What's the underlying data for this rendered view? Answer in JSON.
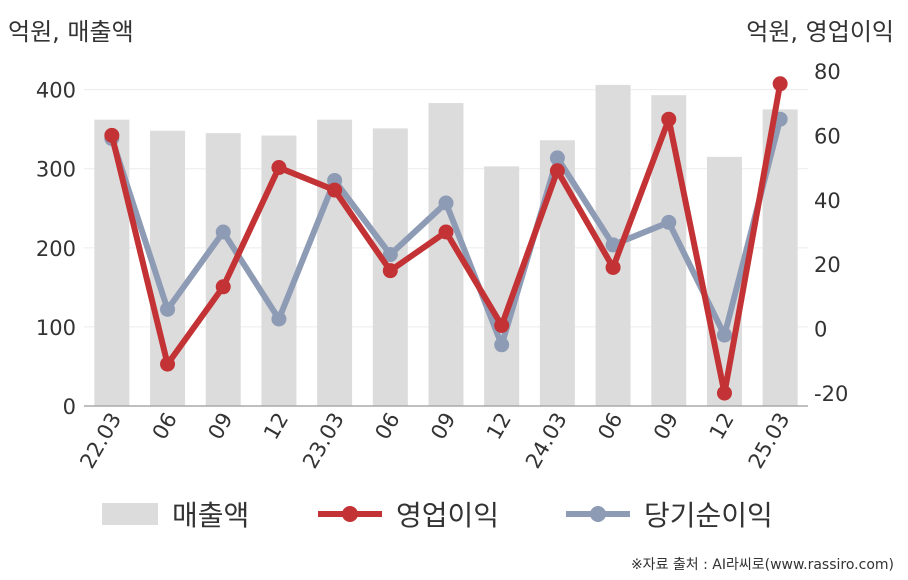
{
  "header": {
    "left_unit": "억원, 매출액",
    "right_unit": "억원, 영업이익"
  },
  "chart_data": {
    "type": "bar",
    "categories": [
      "22.03",
      "06",
      "09",
      "12",
      "23.03",
      "06",
      "09",
      "12",
      "24.03",
      "06",
      "09",
      "12",
      "25.03"
    ],
    "left_axis": {
      "ylim": [
        0,
        440
      ],
      "ticks": [
        0,
        100,
        200,
        300,
        400
      ]
    },
    "right_axis": {
      "ylim": [
        -24,
        84
      ],
      "ticks": [
        -20,
        0,
        20,
        40,
        60,
        80
      ]
    },
    "series": [
      {
        "name": "매출액",
        "kind": "bar",
        "axis": "left",
        "color": "#dcdcdc",
        "values": [
          362,
          348,
          345,
          342,
          362,
          351,
          383,
          303,
          336,
          406,
          393,
          315,
          375
        ]
      },
      {
        "name": "영업이익",
        "kind": "line",
        "axis": "right",
        "color": "#c33234",
        "values": [
          60,
          -11,
          13,
          50,
          43,
          18,
          30,
          1,
          49,
          19,
          65,
          -20,
          76
        ]
      },
      {
        "name": "당기순이익",
        "kind": "line",
        "axis": "right",
        "color": "#8e9bb5",
        "values": [
          59,
          6,
          30,
          3,
          46,
          23,
          39,
          -5,
          53,
          26,
          33,
          -2,
          65
        ]
      }
    ],
    "grid": true,
    "legend_position": "bottom"
  },
  "source": "※자료 출처 : AI라씨로(www.rassiro.com)"
}
